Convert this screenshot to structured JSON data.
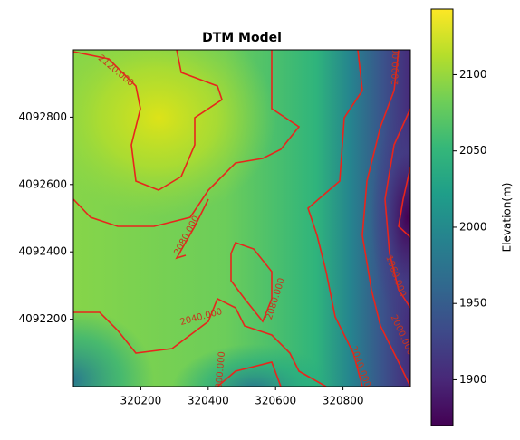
{
  "chart_data": {
    "type": "heatmap",
    "title": "DTM Model",
    "xlim": [
      320000,
      321000
    ],
    "xticks": [
      320200,
      320400,
      320600,
      320800
    ],
    "ylim": [
      4092000,
      4093000
    ],
    "yticks": [
      4092200,
      4092400,
      4092600,
      4092800
    ],
    "colorbar": {
      "label": "Elevation(m)",
      "colormap": "viridis",
      "lim": [
        1870,
        2143
      ],
      "ticks": [
        1900,
        1950,
        2000,
        2050,
        2100
      ]
    },
    "contour_levels": {
      "values": [
        1960,
        2000,
        2040,
        2080,
        2120
      ],
      "value_labels": [
        "1960.000",
        "2000.000",
        "2040.000",
        "2080.000",
        "2120.000"
      ],
      "color": "#e8251c"
    }
  }
}
